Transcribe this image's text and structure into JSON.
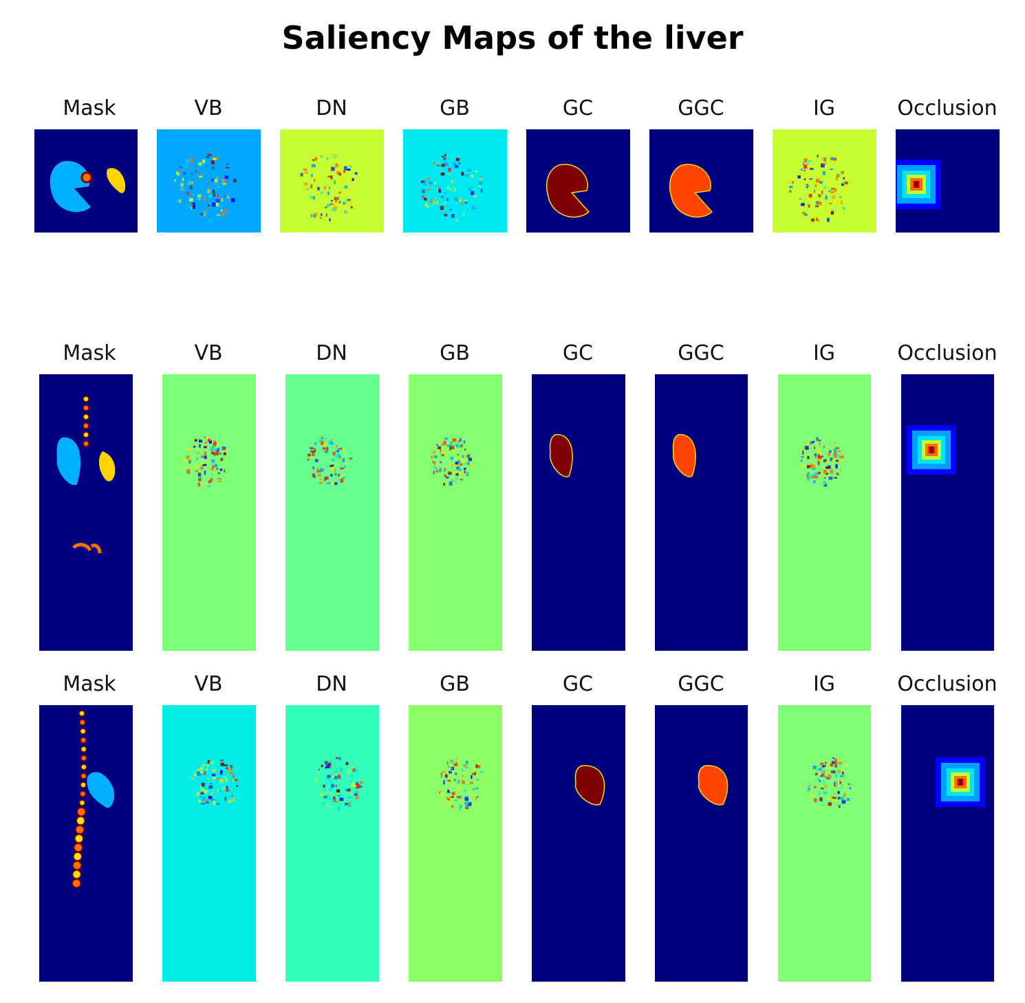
{
  "figure": {
    "title": "Saliency Maps of the liver",
    "colors": {
      "jet_dark_blue": "#00007f",
      "jet_blue": "#0000ff",
      "jet_light_blue": "#00a0ff",
      "jet_cyan": "#00e5f0",
      "jet_aqua": "#00ffd0",
      "jet_green": "#66ff8f",
      "jet_yellow_green": "#c6ff31",
      "jet_yellow": "#ffe000",
      "jet_orange": "#ff7000",
      "jet_red": "#ff1a00",
      "jet_dark_red": "#7f0000"
    },
    "rows": [
      {
        "panels": [
          {
            "label": "Mask",
            "background": "#00007f",
            "pattern": "mask-organs"
          },
          {
            "label": "VB",
            "background": "#00a8ff",
            "pattern": "noisy-blob"
          },
          {
            "label": "DN",
            "background": "#c6ff31",
            "pattern": "noisy-blob"
          },
          {
            "label": "GB",
            "background": "#00e8f0",
            "pattern": "noisy-blob"
          },
          {
            "label": "GC",
            "background": "#00007f",
            "pattern": "liver-dark-red"
          },
          {
            "label": "GGC",
            "background": "#00007f",
            "pattern": "liver-red"
          },
          {
            "label": "IG",
            "background": "#c6ff31",
            "pattern": "noisy-blob"
          },
          {
            "label": "Occlusion",
            "background": "#00007f",
            "pattern": "occlusion-heat"
          }
        ]
      },
      {
        "panels": [
          {
            "label": "Mask",
            "background": "#00007f",
            "pattern": "mask-organs"
          },
          {
            "label": "VB",
            "background": "#7dff7a",
            "pattern": "noisy-blob"
          },
          {
            "label": "DN",
            "background": "#66ff8f",
            "pattern": "noisy-blob"
          },
          {
            "label": "GB",
            "background": "#86ff70",
            "pattern": "noisy-blob"
          },
          {
            "label": "GC",
            "background": "#00007f",
            "pattern": "liver-dark-red"
          },
          {
            "label": "GGC",
            "background": "#00007f",
            "pattern": "liver-red"
          },
          {
            "label": "IG",
            "background": "#80ff76",
            "pattern": "noisy-blob"
          },
          {
            "label": "Occlusion",
            "background": "#00007f",
            "pattern": "occlusion-heat"
          }
        ]
      },
      {
        "panels": [
          {
            "label": "Mask",
            "background": "#00007f",
            "pattern": "mask-spine"
          },
          {
            "label": "VB",
            "background": "#00eee6",
            "pattern": "noisy-blob"
          },
          {
            "label": "DN",
            "background": "#33ffbd",
            "pattern": "noisy-blob"
          },
          {
            "label": "GB",
            "background": "#8dff66",
            "pattern": "noisy-blob"
          },
          {
            "label": "GC",
            "background": "#00007f",
            "pattern": "liver-dark-red"
          },
          {
            "label": "GGC",
            "background": "#00007f",
            "pattern": "liver-red"
          },
          {
            "label": "IG",
            "background": "#80ff76",
            "pattern": "noisy-blob"
          },
          {
            "label": "Occlusion",
            "background": "#00007f",
            "pattern": "occlusion-heat"
          }
        ]
      }
    ]
  }
}
